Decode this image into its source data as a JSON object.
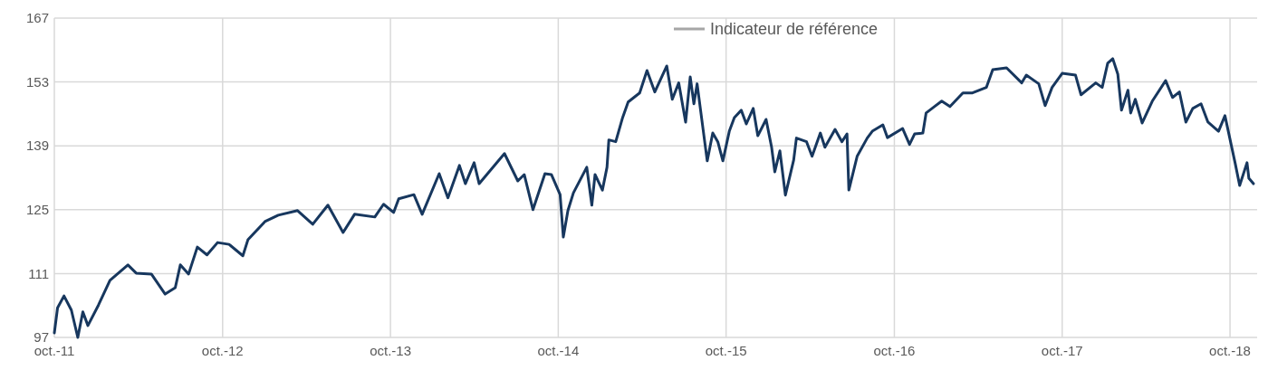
{
  "chart_data": {
    "type": "line",
    "xlim": [
      "2011-10-01",
      "2018-11-29"
    ],
    "xticks": [
      {
        "value": "2011-10-01",
        "label": "oct.-11"
      },
      {
        "value": "2012-10-01",
        "label": "oct.-12"
      },
      {
        "value": "2013-10-01",
        "label": "oct.-13"
      },
      {
        "value": "2014-10-01",
        "label": "oct.-14"
      },
      {
        "value": "2015-10-01",
        "label": "oct.-15"
      },
      {
        "value": "2016-10-01",
        "label": "oct.-16"
      },
      {
        "value": "2017-10-01",
        "label": "oct.-17"
      },
      {
        "value": "2018-10-01",
        "label": "oct.-18"
      }
    ],
    "ylim": [
      97,
      167
    ],
    "yticks": [
      97,
      111,
      125,
      139,
      153,
      167
    ],
    "grid": true,
    "legend": "top",
    "line_style": "solid",
    "marker": "none",
    "series": [
      {
        "color": "#17375e",
        "x": [
          "2011-10-01",
          "2011-10-08",
          "2011-10-22",
          "2011-11-07",
          "2011-11-21",
          "2011-12-02",
          "2011-12-13",
          "2012-01-05",
          "2012-01-30",
          "2012-03-09",
          "2012-03-27",
          "2012-04-29",
          "2012-05-29",
          "2012-06-20",
          "2012-07-01",
          "2012-07-19",
          "2012-08-07",
          "2012-08-28",
          "2012-09-20",
          "2012-10-15",
          "2012-11-14",
          "2012-11-25",
          "2013-01-01",
          "2013-01-30",
          "2013-03-13",
          "2013-04-15",
          "2013-05-18",
          "2013-06-20",
          "2013-07-15",
          "2013-08-28",
          "2013-09-16",
          "2013-10-08",
          "2013-10-19",
          "2013-11-21",
          "2013-12-09",
          "2014-01-15",
          "2014-02-03",
          "2014-02-28",
          "2014-03-13",
          "2014-04-01",
          "2014-04-12",
          "2014-06-06",
          "2014-07-05",
          "2014-07-19",
          "2014-08-07",
          "2014-09-02",
          "2014-09-16",
          "2014-10-05",
          "2014-10-12",
          "2014-10-22",
          "2014-11-03",
          "2014-12-02",
          "2014-12-13",
          "2014-12-20",
          "2015-01-05",
          "2015-01-15",
          "2015-01-19",
          "2015-02-03",
          "2015-02-18",
          "2015-03-02",
          "2015-03-27",
          "2015-04-12",
          "2015-04-29",
          "2015-05-25",
          "2015-06-06",
          "2015-06-20",
          "2015-07-05",
          "2015-07-15",
          "2015-07-23",
          "2015-07-30",
          "2015-08-21",
          "2015-09-02",
          "2015-09-13",
          "2015-09-24",
          "2015-10-08",
          "2015-10-19",
          "2015-11-03",
          "2015-11-14",
          "2015-11-29",
          "2015-12-09",
          "2015-12-27",
          "2016-01-08",
          "2016-01-15",
          "2016-01-26",
          "2016-02-07",
          "2016-02-25",
          "2016-03-02",
          "2016-03-24",
          "2016-04-05",
          "2016-04-23",
          "2016-05-03",
          "2016-05-25",
          "2016-06-09",
          "2016-06-20",
          "2016-06-24",
          "2016-07-12",
          "2016-08-03",
          "2016-08-14",
          "2016-09-06",
          "2016-09-16",
          "2016-10-19",
          "2016-11-03",
          "2016-11-14",
          "2016-12-02",
          "2016-12-09",
          "2016-12-27",
          "2017-01-12",
          "2017-01-30",
          "2017-02-27",
          "2017-03-20",
          "2017-04-19",
          "2017-05-03",
          "2017-06-02",
          "2017-07-05",
          "2017-07-15",
          "2017-08-11",
          "2017-08-25",
          "2017-09-09",
          "2017-10-01",
          "2017-10-30",
          "2017-11-11",
          "2017-12-13",
          "2017-12-27",
          "2018-01-08",
          "2018-01-19",
          "2018-01-30",
          "2018-02-07",
          "2018-02-21",
          "2018-02-27",
          "2018-03-09",
          "2018-03-24",
          "2018-04-15",
          "2018-05-14",
          "2018-05-29",
          "2018-06-13",
          "2018-06-27",
          "2018-07-12",
          "2018-07-30",
          "2018-08-14",
          "2018-09-06",
          "2018-09-20",
          "2018-10-12",
          "2018-10-22",
          "2018-11-07",
          "2018-11-11",
          "2018-11-21"
        ],
        "values": [
          98.0,
          103.5,
          106.1,
          103.0,
          97.0,
          102.6,
          99.6,
          104.1,
          109.5,
          112.9,
          111.1,
          110.9,
          106.5,
          107.9,
          112.9,
          110.9,
          116.8,
          115.1,
          117.8,
          117.4,
          114.9,
          118.4,
          122.4,
          123.8,
          124.8,
          121.8,
          126.0,
          120.0,
          124.0,
          123.4,
          126.2,
          124.4,
          127.4,
          128.3,
          124.0,
          132.9,
          127.6,
          134.7,
          130.7,
          135.3,
          130.7,
          137.3,
          131.3,
          132.7,
          125.0,
          132.9,
          132.7,
          128.3,
          119.0,
          124.8,
          128.7,
          134.3,
          126.0,
          132.7,
          129.3,
          134.3,
          140.3,
          139.9,
          145.2,
          148.6,
          150.6,
          155.5,
          150.8,
          156.5,
          149.2,
          152.8,
          144.2,
          154.1,
          148.2,
          152.6,
          135.7,
          141.8,
          139.9,
          135.7,
          142.2,
          145.2,
          146.8,
          143.8,
          147.2,
          141.2,
          144.8,
          138.7,
          133.3,
          137.9,
          128.2,
          135.9,
          140.7,
          139.9,
          136.7,
          141.8,
          138.7,
          142.6,
          139.9,
          141.6,
          129.3,
          136.7,
          140.7,
          142.2,
          143.6,
          140.8,
          142.8,
          139.3,
          141.6,
          141.8,
          146.2,
          147.6,
          148.8,
          147.6,
          150.6,
          150.6,
          151.8,
          155.7,
          156.1,
          152.8,
          154.5,
          152.6,
          147.8,
          151.8,
          154.9,
          154.5,
          150.2,
          152.8,
          151.8,
          157.1,
          158.1,
          154.7,
          146.8,
          151.2,
          146.2,
          149.2,
          144.0,
          148.8,
          153.3,
          149.6,
          150.8,
          144.2,
          147.2,
          148.2,
          144.2,
          142.2,
          145.6,
          135.3,
          130.3,
          135.3,
          131.9,
          130.7
        ]
      },
      {
        "name": "Indicateur de référence",
        "color": "#a6a6a6"
      }
    ]
  }
}
